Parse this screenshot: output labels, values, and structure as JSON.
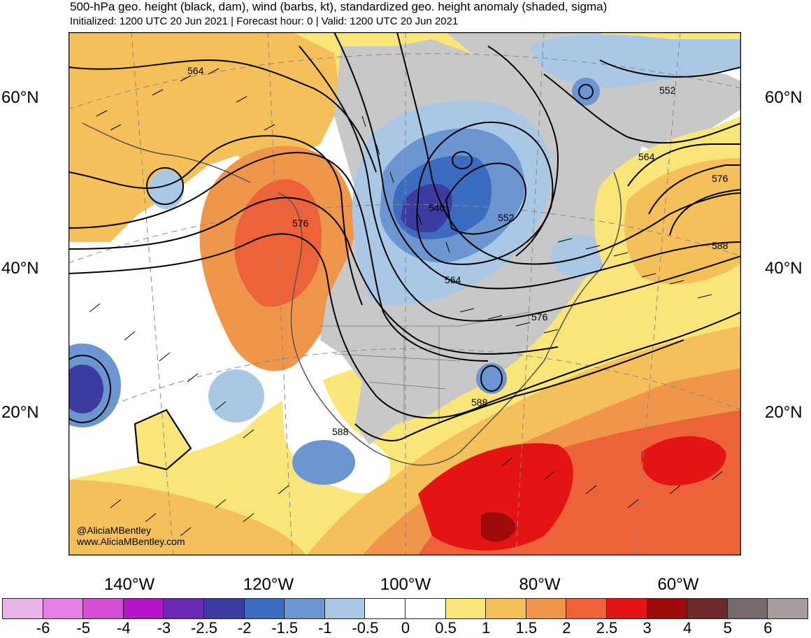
{
  "header": {
    "title": "500-hPa geo. height (black, dam), wind (barbs, kt), standardized geo. height anomaly (shaded, sigma)",
    "subtitle": "Initialized: 1200 UTC 20 Jun 2021 | Forecast hour: 0 | Valid: 1200 UTC 20 Jun 2021"
  },
  "map": {
    "lat_labels": [
      "60°N",
      "40°N",
      "20°N"
    ],
    "lon_labels": [
      "140°W",
      "120°W",
      "100°W",
      "80°W",
      "60°W"
    ],
    "contour_labels": [
      "564",
      "552",
      "564",
      "576",
      "588",
      "576",
      "540",
      "552",
      "564",
      "576",
      "588",
      "588"
    ],
    "credits": {
      "handle": "@AliciaMBentley",
      "website": "www.AliciaMBentley.com"
    }
  },
  "colorbar": {
    "ticks": [
      "-6",
      "-5",
      "-4",
      "-3",
      "-2.5",
      "-2",
      "-1.5",
      "-1",
      "-0.5",
      "0",
      "0.5",
      "1",
      "1.5",
      "2",
      "2.5",
      "3",
      "4",
      "5",
      "6"
    ],
    "colors": [
      "#e8b4e8",
      "#e47fe4",
      "#d64ed6",
      "#b514c8",
      "#6a28b4",
      "#3c3ca0",
      "#3c6cc0",
      "#6c96d2",
      "#a8c8e6",
      "#ffffff",
      "#ffffff",
      "#fae678",
      "#f5c05a",
      "#f0964a",
      "#ee623a",
      "#e41414",
      "#a00a0a",
      "#6e2a2a",
      "#786a6a",
      "#a89c9c"
    ]
  }
}
